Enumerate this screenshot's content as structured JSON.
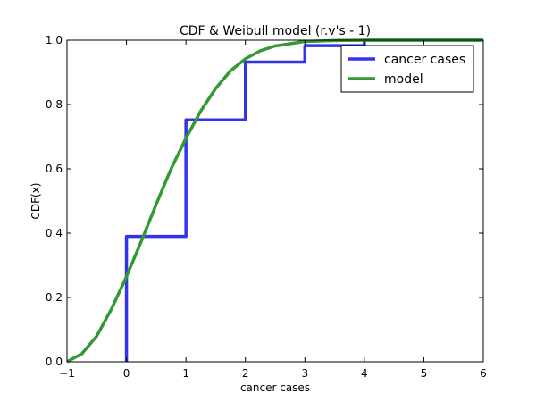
{
  "chart_data": {
    "type": "line",
    "title": "CDF & Weibull model (r.v's - 1)",
    "xlabel": "cancer cases",
    "ylabel": "CDF(x)",
    "xlim": [
      -1,
      6
    ],
    "ylim": [
      0,
      1
    ],
    "xticks": [
      -1,
      0,
      1,
      2,
      3,
      4,
      5,
      6
    ],
    "yticks": [
      0.0,
      0.2,
      0.4,
      0.6,
      0.8,
      1.0
    ],
    "xtick_labels": [
      "−1",
      "0",
      "1",
      "2",
      "3",
      "4",
      "5",
      "6"
    ],
    "ytick_labels": [
      "0.0",
      "0.2",
      "0.4",
      "0.6",
      "0.8",
      "1.0"
    ],
    "grid": false,
    "legend_position": "top-right",
    "series": [
      {
        "name": "cancer cases",
        "kind": "step",
        "color": "#3333ee",
        "x": [
          0,
          1,
          2,
          3,
          4,
          6
        ],
        "y": [
          0.39,
          0.752,
          0.932,
          0.983,
          1.0,
          1.0
        ]
      },
      {
        "name": "model",
        "kind": "line",
        "color": "#339933",
        "x": [
          -1.0,
          -0.75,
          -0.5,
          -0.25,
          0.0,
          0.25,
          0.5,
          0.75,
          1.0,
          1.25,
          1.5,
          1.75,
          2.0,
          2.25,
          2.5,
          3.0,
          3.5,
          4.0,
          5.0,
          6.0
        ],
        "y": [
          0.0,
          0.025,
          0.08,
          0.165,
          0.265,
          0.375,
          0.49,
          0.6,
          0.695,
          0.78,
          0.85,
          0.905,
          0.942,
          0.967,
          0.982,
          0.996,
          0.999,
          1.0,
          1.0,
          1.0
        ]
      }
    ]
  }
}
